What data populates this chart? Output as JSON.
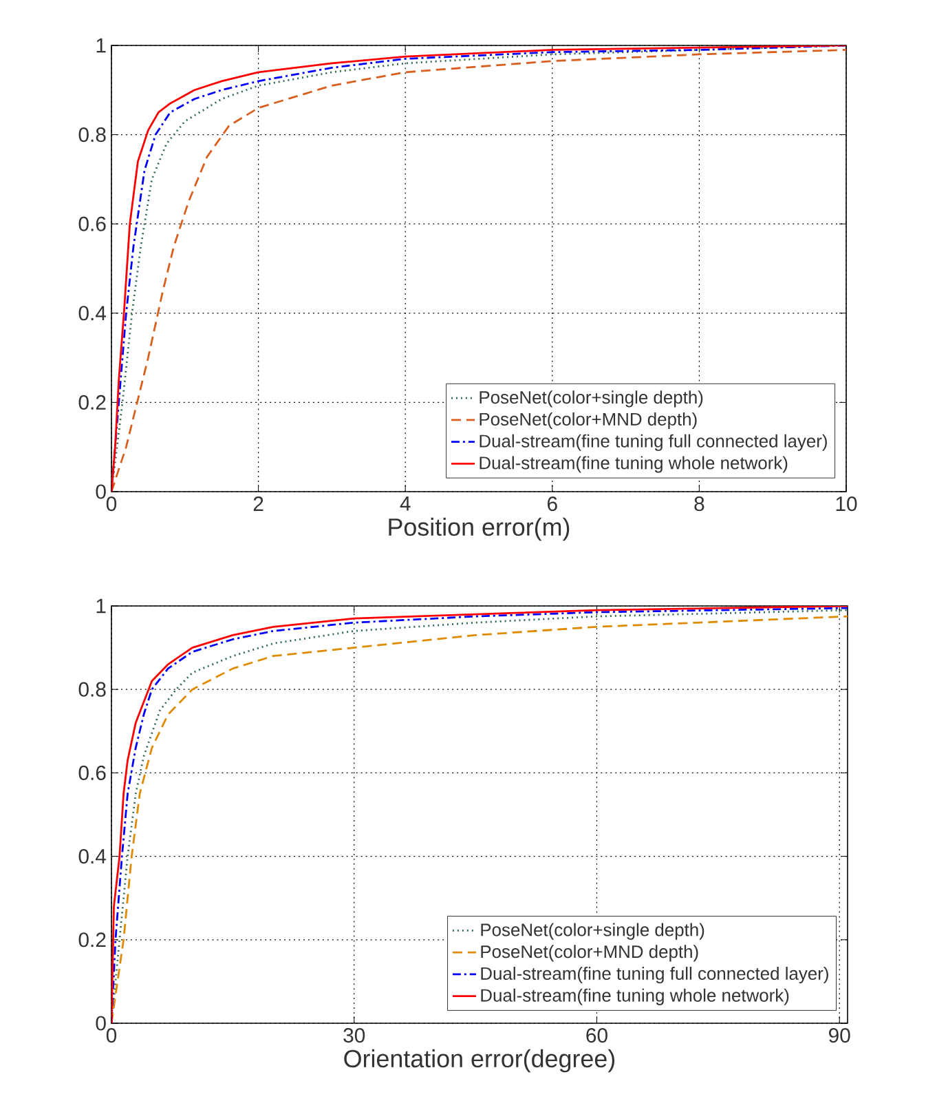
{
  "chart_data": [
    {
      "type": "line",
      "xlabel": "Position error(m)",
      "xlim": [
        0,
        10
      ],
      "ylim": [
        0,
        1
      ],
      "xticks": [
        0,
        2,
        4,
        6,
        8,
        10
      ],
      "yticks": [
        0,
        0.2,
        0.4,
        0.6,
        0.8,
        1
      ],
      "grid": true,
      "legend": "bottom right",
      "marker": "none",
      "series": [
        {
          "name": "PoseNet(color+single depth)",
          "color": "#2e6b4f",
          "line_style": "dotted",
          "x": [
            0,
            0.15,
            0.28,
            0.4,
            0.55,
            0.75,
            1,
            1.5,
            2,
            3,
            4,
            6,
            8,
            10
          ],
          "values": [
            0,
            0.2,
            0.4,
            0.55,
            0.7,
            0.78,
            0.83,
            0.88,
            0.91,
            0.94,
            0.96,
            0.98,
            0.99,
            1.0
          ]
        },
        {
          "name": "PoseNet(color+MND depth)",
          "color": "#d95f1f",
          "line_style": "dashed",
          "x": [
            0,
            0.2,
            0.35,
            0.5,
            0.7,
            0.85,
            1.05,
            1.3,
            1.6,
            2,
            3,
            4,
            6,
            8,
            10
          ],
          "values": [
            0,
            0.1,
            0.2,
            0.3,
            0.45,
            0.55,
            0.65,
            0.75,
            0.82,
            0.86,
            0.91,
            0.94,
            0.965,
            0.98,
            0.99
          ]
        },
        {
          "name": "Dual-stream(fine tuning full connected layer)",
          "color": "#0000ff",
          "line_style": "dashdot",
          "x": [
            0,
            0.1,
            0.2,
            0.3,
            0.45,
            0.6,
            0.8,
            1.13,
            1.5,
            2,
            3,
            4,
            6,
            8,
            10
          ],
          "values": [
            0,
            0.2,
            0.4,
            0.55,
            0.72,
            0.8,
            0.85,
            0.88,
            0.9,
            0.92,
            0.95,
            0.97,
            0.985,
            0.99,
            1.0
          ]
        },
        {
          "name": "Dual-stream(fine tuning whole network)",
          "color": "#ff0000",
          "line_style": "solid",
          "x": [
            0,
            0.05,
            0.1,
            0.17,
            0.25,
            0.36,
            0.5,
            0.64,
            0.8,
            1.13,
            1.5,
            2,
            3,
            4,
            6,
            8,
            10
          ],
          "values": [
            0,
            0.1,
            0.25,
            0.4,
            0.6,
            0.74,
            0.81,
            0.85,
            0.87,
            0.9,
            0.92,
            0.94,
            0.96,
            0.975,
            0.99,
            0.995,
            1.0
          ]
        }
      ]
    },
    {
      "type": "line",
      "xlabel": "Orientation error(degree)",
      "xlim": [
        0,
        91
      ],
      "ylim": [
        0,
        1
      ],
      "xticks": [
        0,
        30,
        60,
        90
      ],
      "yticks": [
        0,
        0.2,
        0.4,
        0.6,
        0.8,
        1
      ],
      "grid": true,
      "legend": "bottom right",
      "marker": "none",
      "series": [
        {
          "name": "PoseNet(color+single depth)",
          "color": "#2e6b4f",
          "line_style": "dotted",
          "x": [
            0,
            1,
            2,
            3,
            4,
            6,
            8,
            10,
            15,
            20,
            30,
            45,
            60,
            91
          ],
          "values": [
            0,
            0.2,
            0.4,
            0.55,
            0.64,
            0.75,
            0.8,
            0.84,
            0.88,
            0.91,
            0.94,
            0.96,
            0.975,
            0.99
          ]
        },
        {
          "name": "PoseNet(color+MND depth)",
          "color": "#e08a00",
          "line_style": "dashed",
          "x": [
            0,
            1.5,
            2.5,
            3.5,
            5,
            7,
            10,
            15,
            20,
            30,
            45,
            60,
            91
          ],
          "values": [
            0,
            0.2,
            0.4,
            0.55,
            0.66,
            0.74,
            0.8,
            0.85,
            0.88,
            0.9,
            0.93,
            0.95,
            0.975
          ]
        },
        {
          "name": "Dual-stream(fine tuning full connected layer)",
          "color": "#0000ff",
          "line_style": "dashdot",
          "x": [
            0,
            0.5,
            1.3,
            2,
            3,
            4,
            5,
            7,
            10,
            15,
            20,
            30,
            45,
            60,
            91
          ],
          "values": [
            0,
            0.2,
            0.4,
            0.55,
            0.66,
            0.74,
            0.8,
            0.85,
            0.89,
            0.92,
            0.94,
            0.96,
            0.975,
            0.985,
            0.995
          ]
        },
        {
          "name": "Dual-stream(fine tuning whole network)",
          "color": "#ff0000",
          "line_style": "solid",
          "x": [
            0,
            0.3,
            1,
            1.5,
            2,
            3,
            4,
            5,
            7,
            10,
            15,
            20,
            30,
            45,
            60,
            91
          ],
          "values": [
            0,
            0.28,
            0.4,
            0.55,
            0.63,
            0.72,
            0.77,
            0.82,
            0.86,
            0.9,
            0.93,
            0.95,
            0.97,
            0.98,
            0.99,
            1.0
          ]
        }
      ]
    }
  ]
}
